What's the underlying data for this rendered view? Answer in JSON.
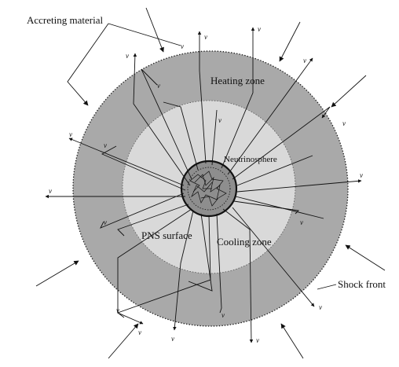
{
  "labels": {
    "accreting_material": "Accreting material",
    "heating_zone": "Heating zone",
    "neutrinosphere": "Neutrinosphere",
    "pns_surface": "PNS surface",
    "cooling_zone": "Cooling zone",
    "shock_front": "Shock front"
  },
  "velocity_symbol": "v",
  "colors": {
    "shocked_region": "#a9a9a9",
    "cooling_region": "#d9d9d9",
    "pns_core": "#8e8e8e",
    "line": "#111111"
  }
}
